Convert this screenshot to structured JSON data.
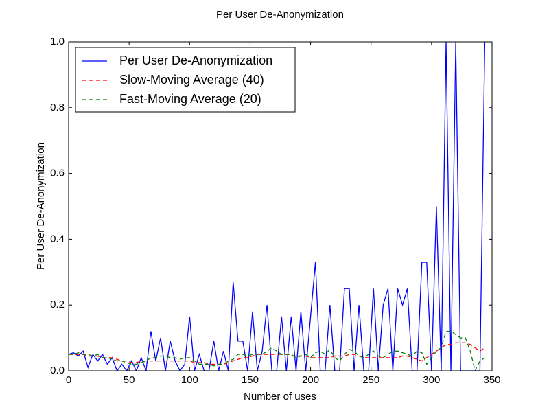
{
  "chart_data": {
    "type": "line",
    "title": "Per User De-Anonymization",
    "xlabel": "Number of uses",
    "ylabel": "Per User De-Anonymization",
    "x": [
      0,
      4,
      8,
      12,
      16,
      20,
      24,
      28,
      32,
      36,
      40,
      44,
      48,
      52,
      56,
      60,
      64,
      68,
      72,
      76,
      80,
      84,
      88,
      92,
      96,
      100,
      104,
      108,
      112,
      116,
      120,
      124,
      128,
      132,
      136,
      140,
      144,
      148,
      152,
      156,
      160,
      164,
      168,
      172,
      176,
      180,
      184,
      188,
      192,
      196,
      200,
      204,
      208,
      212,
      216,
      220,
      224,
      228,
      232,
      236,
      240,
      244,
      248,
      252,
      256,
      260,
      264,
      268,
      272,
      276,
      280,
      284,
      288,
      292,
      296,
      300,
      304,
      308,
      312,
      316,
      320,
      324,
      328,
      332,
      336,
      340,
      344
    ],
    "series": [
      {
        "name": "Per User De-Anonymization",
        "color": "#0000ff",
        "dash": "solid",
        "values": [
          0.05,
          0.055,
          0.045,
          0.06,
          0.01,
          0.05,
          0.03,
          0.05,
          0.02,
          0.04,
          0.0,
          0.02,
          0.0,
          0.03,
          0.0,
          0.04,
          0.0,
          0.12,
          0.03,
          0.1,
          0.0,
          0.09,
          0.03,
          0.0,
          0.02,
          0.165,
          0.0,
          0.05,
          0.0,
          0.0,
          0.09,
          0.0,
          0.06,
          0.0,
          0.27,
          0.09,
          0.09,
          0.0,
          0.18,
          0.0,
          0.06,
          0.2,
          0.0,
          0.0,
          0.165,
          0.0,
          0.165,
          0.0,
          0.18,
          0.0,
          0.165,
          0.33,
          0.0,
          0.0,
          0.2,
          0.0,
          0.0,
          0.25,
          0.25,
          0.0,
          0.2,
          0.0,
          0.0,
          0.25,
          0.0,
          0.2,
          0.25,
          0.0,
          0.25,
          0.2,
          0.25,
          0.0,
          0.0,
          0.33,
          0.33,
          0.0,
          0.5,
          0.0,
          1.0,
          0.0,
          1.0,
          0.0,
          0.0,
          0.0,
          0.0,
          0.0,
          1.0
        ]
      },
      {
        "name": "Slow-Moving Average (40)",
        "color": "#ff0000",
        "dash": "dashed",
        "values": [
          0.05,
          0.05,
          0.05,
          0.05,
          0.045,
          0.045,
          0.045,
          0.04,
          0.04,
          0.04,
          0.035,
          0.03,
          0.03,
          0.025,
          0.025,
          0.03,
          0.03,
          0.03,
          0.03,
          0.03,
          0.03,
          0.03,
          0.03,
          0.03,
          0.03,
          0.03,
          0.025,
          0.025,
          0.025,
          0.02,
          0.02,
          0.02,
          0.02,
          0.025,
          0.03,
          0.035,
          0.04,
          0.04,
          0.045,
          0.05,
          0.05,
          0.05,
          0.05,
          0.05,
          0.05,
          0.05,
          0.045,
          0.045,
          0.045,
          0.045,
          0.04,
          0.04,
          0.04,
          0.04,
          0.04,
          0.045,
          0.045,
          0.045,
          0.05,
          0.05,
          0.045,
          0.04,
          0.04,
          0.04,
          0.04,
          0.04,
          0.04,
          0.04,
          0.04,
          0.045,
          0.045,
          0.04,
          0.035,
          0.03,
          0.04,
          0.05,
          0.06,
          0.07,
          0.08,
          0.08,
          0.085,
          0.085,
          0.085,
          0.08,
          0.07,
          0.06,
          0.07
        ]
      },
      {
        "name": "Fast-Moving Average (20)",
        "color": "#008000",
        "dash": "dashed",
        "values": [
          0.05,
          0.05,
          0.055,
          0.05,
          0.05,
          0.045,
          0.05,
          0.04,
          0.04,
          0.035,
          0.03,
          0.03,
          0.025,
          0.02,
          0.02,
          0.025,
          0.03,
          0.04,
          0.04,
          0.045,
          0.045,
          0.04,
          0.04,
          0.035,
          0.04,
          0.04,
          0.03,
          0.02,
          0.02,
          0.02,
          0.015,
          0.02,
          0.02,
          0.03,
          0.035,
          0.05,
          0.05,
          0.045,
          0.05,
          0.05,
          0.05,
          0.06,
          0.07,
          0.06,
          0.05,
          0.05,
          0.05,
          0.04,
          0.045,
          0.05,
          0.04,
          0.055,
          0.06,
          0.05,
          0.065,
          0.04,
          0.03,
          0.05,
          0.065,
          0.06,
          0.045,
          0.04,
          0.05,
          0.06,
          0.045,
          0.04,
          0.05,
          0.06,
          0.06,
          0.055,
          0.05,
          0.045,
          0.06,
          0.055,
          0.02,
          0.04,
          0.06,
          0.07,
          0.12,
          0.12,
          0.11,
          0.1,
          0.1,
          0.06,
          0.0,
          0.03,
          0.04
        ]
      }
    ],
    "xlim": [
      0,
      350
    ],
    "xticks": [
      0,
      50,
      100,
      150,
      200,
      250,
      300,
      350
    ],
    "ylim": [
      0,
      1
    ],
    "yticks": [
      {
        "value": 0,
        "label": "0.0"
      },
      0.2,
      0.4,
      0.6,
      0.8,
      {
        "value": 1,
        "label": "1.0"
      }
    ],
    "grid": false,
    "legend": "upper left"
  }
}
